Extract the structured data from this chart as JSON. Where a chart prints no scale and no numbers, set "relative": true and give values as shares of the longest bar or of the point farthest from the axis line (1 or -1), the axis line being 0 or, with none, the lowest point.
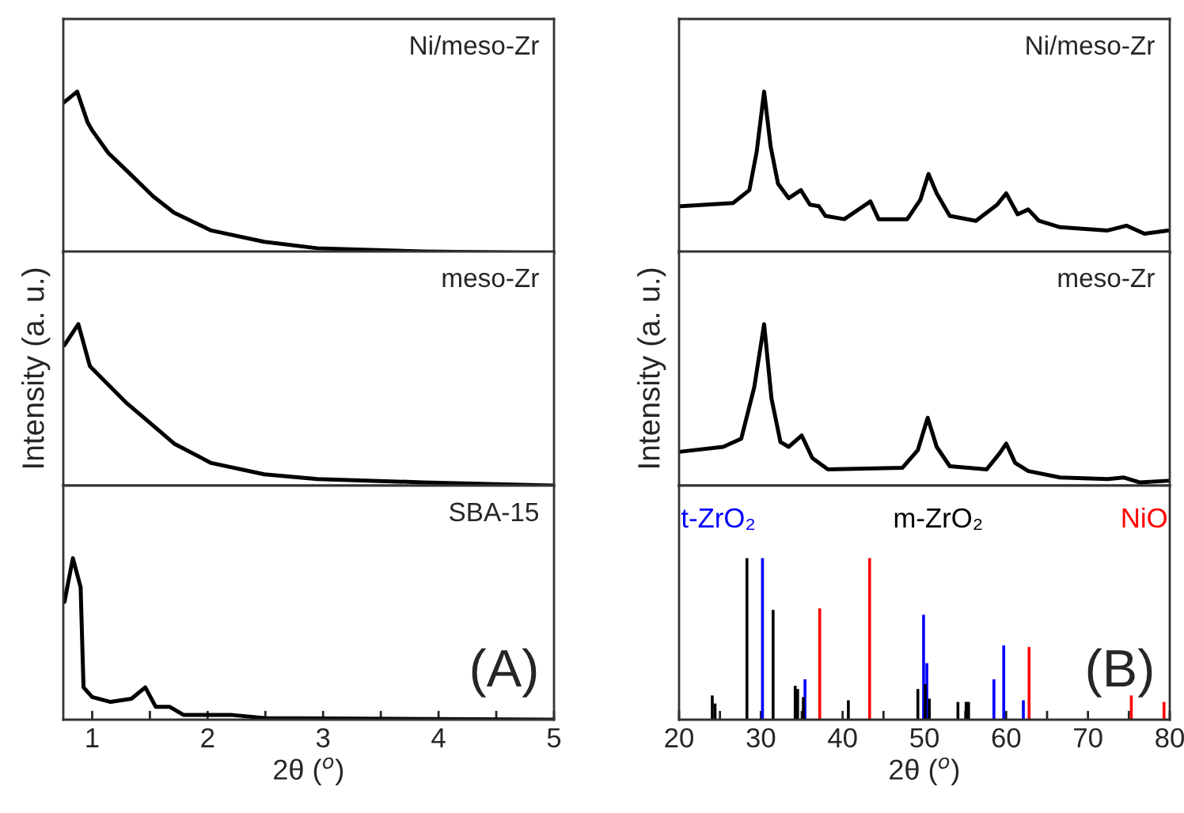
{
  "chart_data": [
    {
      "type": "line",
      "relative": true,
      "xlim": [
        0.75,
        5
      ],
      "tick_labels": false,
      "annotations": [
        "Ni/meso-Zr"
      ],
      "series": [
        {
          "color": "#000000",
          "x": [
            0.75,
            0.87,
            0.96,
            1.0,
            1.14,
            1.3,
            1.53,
            1.71,
            2.03,
            2.49,
            2.95,
            3.87,
            5
          ],
          "values": [
            0.93,
            1,
            0.81,
            0.76,
            0.62,
            0.51,
            0.35,
            0.25,
            0.14,
            0.07,
            0.03,
            0.01,
            0
          ]
        }
      ]
    },
    {
      "type": "line",
      "relative": true,
      "xlim": [
        0.75,
        5
      ],
      "tick_labels": false,
      "ylabel": "Intensity (a. u.)",
      "annotations": [
        "meso-Zr"
      ],
      "series": [
        {
          "color": "#000000",
          "x": [
            0.76,
            0.88,
            0.98,
            1.3,
            1.53,
            1.71,
            2.03,
            2.49,
            2.95,
            3.87,
            5
          ],
          "values": [
            0.87,
            1,
            0.74,
            0.51,
            0.37,
            0.26,
            0.14,
            0.07,
            0.04,
            0.02,
            0
          ]
        }
      ]
    },
    {
      "type": "line",
      "relative": true,
      "xlim": [
        0.75,
        5
      ],
      "tick_labels": "x",
      "xlabel": "2θ ($^{o}$)",
      "annotations": [
        "SBA-15",
        "(A)"
      ],
      "xticks": [
        1,
        {
          "value": 1.5,
          "label": null
        },
        2,
        {
          "value": 2.5,
          "label": null
        },
        3,
        {
          "value": 3.5,
          "label": null
        },
        4,
        {
          "value": 4.5,
          "label": null
        },
        5
      ],
      "series": [
        {
          "color": "#000000",
          "x": [
            0.76,
            0.833,
            0.9,
            0.925,
            1.0,
            1.16,
            1.34,
            1.46,
            1.55,
            1.67,
            1.79,
            2.2,
            2.49,
            5
          ],
          "values": [
            0.73,
            1,
            0.82,
            0.2,
            0.14,
            0.11,
            0.13,
            0.2,
            0.08,
            0.08,
            0.03,
            0.03,
            0.01,
            0
          ]
        }
      ]
    },
    {
      "type": "line",
      "relative": true,
      "xlim": [
        20,
        80
      ],
      "tick_labels": false,
      "annotations": [
        "Ni/meso-Zr"
      ],
      "series": [
        {
          "color": "#000000",
          "x": [
            20.2,
            26.6,
            28.6,
            29.5,
            30.4,
            31.2,
            32.1,
            33.4,
            34.9,
            36.0,
            37.1,
            37.9,
            40.2,
            43.4,
            44.4,
            47.9,
            49.5,
            50.5,
            51.5,
            53.1,
            56.3,
            58.9,
            60.0,
            61.4,
            62.7,
            64.0,
            66.6,
            72.4,
            74.7,
            76.9,
            79.8
          ],
          "values": [
            0.29,
            0.31,
            0.39,
            0.63,
            1,
            0.66,
            0.43,
            0.34,
            0.39,
            0.3,
            0.29,
            0.23,
            0.21,
            0.32,
            0.21,
            0.21,
            0.33,
            0.49,
            0.37,
            0.23,
            0.2,
            0.3,
            0.37,
            0.24,
            0.27,
            0.2,
            0.16,
            0.14,
            0.17,
            0.12,
            0.14
          ]
        }
      ]
    },
    {
      "type": "line",
      "relative": true,
      "xlim": [
        20,
        80
      ],
      "tick_labels": false,
      "ylabel": "Intensity (a. u.)",
      "annotations": [
        "meso-Zr"
      ],
      "series": [
        {
          "color": "#000000",
          "x": [
            20.2,
            25.4,
            27.6,
            29.2,
            30.4,
            31.3,
            32.4,
            33.4,
            35.0,
            36.3,
            38.2,
            47.3,
            49.2,
            50.4,
            51.5,
            53.1,
            57.6,
            59.2,
            60.0,
            61.1,
            62.7,
            66.6,
            72.4,
            74.4,
            76.3,
            79.8
          ],
          "values": [
            0.21,
            0.24,
            0.29,
            0.61,
            1,
            0.54,
            0.27,
            0.24,
            0.31,
            0.17,
            0.1,
            0.11,
            0.22,
            0.42,
            0.24,
            0.12,
            0.1,
            0.2,
            0.26,
            0.14,
            0.09,
            0.05,
            0.04,
            0.05,
            0.02,
            0.03
          ]
        }
      ]
    },
    {
      "type": "bar",
      "relative": true,
      "xlim": [
        20,
        80
      ],
      "tick_labels": "x",
      "xlabel": "2θ ($^{o}$)",
      "legend": "top",
      "annotations": [
        "(B)"
      ],
      "xticks": [
        20,
        {
          "value": 25,
          "label": null
        },
        30,
        {
          "value": 35,
          "label": null
        },
        40,
        {
          "value": 45,
          "label": null
        },
        50,
        {
          "value": 55,
          "label": null
        },
        60,
        {
          "value": 65,
          "label": null
        },
        70,
        {
          "value": 75,
          "label": null
        },
        80
      ],
      "series": [
        {
          "name": "t-ZrO₂",
          "color": "#0000ff",
          "x": [
            30.2,
            35.4,
            49.9,
            50.3,
            58.5,
            59.7,
            62.1
          ],
          "values": [
            1,
            0.25,
            0.65,
            0.35,
            0.25,
            0.46,
            0.12
          ]
        },
        {
          "name": "m-ZrO₂",
          "color": "#000000",
          "x": [
            24.06,
            24.4,
            28.3,
            31.5,
            34.2,
            34.5,
            35.2,
            40.7,
            49.2,
            50.1,
            50.6,
            54.1,
            55.1,
            55.4
          ],
          "values": [
            0.15,
            0.1,
            1,
            0.68,
            0.21,
            0.19,
            0.14,
            0.12,
            0.19,
            0.22,
            0.13,
            0.11,
            0.11,
            0.11
          ]
        },
        {
          "name": "NiO",
          "color": "#ff0000",
          "x": [
            37.2,
            43.3,
            62.8,
            75.3,
            79.3
          ],
          "values": [
            0.69,
            1,
            0.45,
            0.15,
            0.11
          ]
        }
      ]
    }
  ]
}
